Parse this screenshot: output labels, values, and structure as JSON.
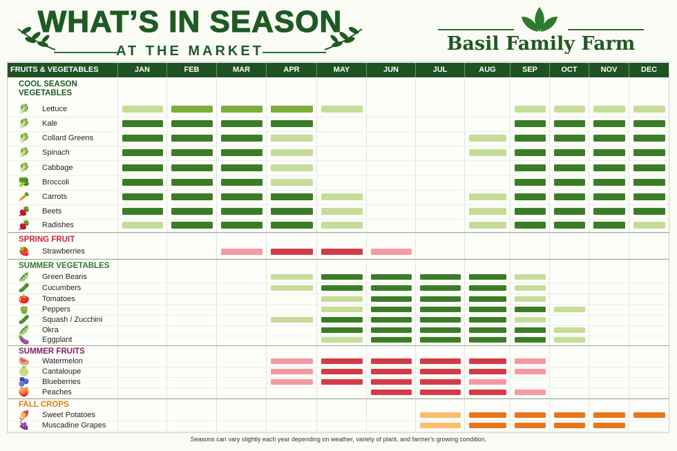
{
  "header": {
    "title": "WHAT’S IN SEASON",
    "subtitle": "AT THE MARKET",
    "brand": "Basil Family Farm"
  },
  "table_header": {
    "first_col": "FRUITS & VEGETABLES",
    "months": [
      "JAN",
      "FEB",
      "MAR",
      "APR",
      "MAY",
      "JUN",
      "JUL",
      "AUG",
      "SEP",
      "OCT",
      "NOV",
      "DEC"
    ]
  },
  "colors": {
    "green_dark": "#3b7d27",
    "green_mid": "#7caf3a",
    "green_light": "#c6dc98",
    "orange_dark": "#e8761a",
    "orange_light": "#fbbd6b",
    "red_dark": "#d23c46",
    "red_light": "#f49aa2",
    "cool": "#1f5a23",
    "spring": "#c8243a",
    "summerveg": "#2e7a2e",
    "summerfruit": "#7d1e6b",
    "fall": "#e07f12"
  },
  "sections": [
    {
      "title": "COOL SEASON VEGETABLES",
      "title_lines": [
        "COOL SEASON",
        "VEGETABLES"
      ],
      "color_key": "cool",
      "items": [
        {
          "name": "Lettuce",
          "icon": "lettuce-icon",
          "glyph": "🥬",
          "season": [
            "L",
            "M",
            "M",
            "M",
            "L",
            0,
            0,
            0,
            "L",
            "L",
            "L",
            "L"
          ]
        },
        {
          "name": "Kale",
          "icon": "kale-icon",
          "glyph": "🥬",
          "season": [
            "D",
            "D",
            "D",
            "D",
            0,
            0,
            0,
            0,
            "D",
            "D",
            "D",
            "D"
          ]
        },
        {
          "name": "Collard Greens",
          "icon": "collard-greens-icon",
          "glyph": "🥬",
          "season": [
            "D",
            "D",
            "D",
            "L",
            0,
            0,
            0,
            "L",
            "D",
            "D",
            "D",
            "D"
          ]
        },
        {
          "name": "Spinach",
          "icon": "spinach-icon",
          "glyph": "🥬",
          "season": [
            "D",
            "D",
            "D",
            "L",
            0,
            0,
            0,
            "L",
            "D",
            "D",
            "D",
            "D"
          ]
        },
        {
          "name": "Cabbage",
          "icon": "cabbage-icon",
          "glyph": "🥬",
          "season": [
            "D",
            "D",
            "D",
            "L",
            0,
            0,
            0,
            0,
            "D",
            "D",
            "D",
            "D"
          ]
        },
        {
          "name": "Broccoli",
          "icon": "broccoli-icon",
          "glyph": "🥦",
          "season": [
            "D",
            "D",
            "D",
            "L",
            0,
            0,
            0,
            0,
            "D",
            "D",
            "D",
            "D"
          ]
        },
        {
          "name": "Carrots",
          "icon": "carrot-icon",
          "glyph": "🥕",
          "season": [
            "D",
            "D",
            "D",
            "D",
            "L",
            0,
            0,
            "L",
            "D",
            "D",
            "D",
            "D"
          ]
        },
        {
          "name": "Beets",
          "icon": "beet-icon",
          "glyph": "🫜",
          "season": [
            "D",
            "D",
            "D",
            "D",
            "L",
            0,
            0,
            "L",
            "D",
            "D",
            "D",
            "D"
          ]
        },
        {
          "name": "Radishes",
          "icon": "radish-icon",
          "glyph": "🫜",
          "season": [
            "L",
            "D",
            "D",
            "D",
            "L",
            0,
            0,
            "L",
            "D",
            "D",
            "D",
            "L"
          ]
        }
      ]
    },
    {
      "title": "SPRING FRUIT",
      "color_key": "spring",
      "items": [
        {
          "name": "Strawberries",
          "icon": "strawberry-icon",
          "glyph": "🍓",
          "season": [
            0,
            0,
            "L",
            "D",
            "D",
            "L",
            0,
            0,
            0,
            0,
            0,
            0
          ]
        }
      ]
    },
    {
      "title": "SUMMER VEGETABLES",
      "color_key": "summerveg",
      "items": [
        {
          "name": "Green Beans",
          "icon": "green-beans-icon",
          "glyph": "🫛",
          "season": [
            0,
            0,
            0,
            "L",
            "D",
            "D",
            "D",
            "D",
            "L",
            0,
            0,
            0
          ]
        },
        {
          "name": "Cucumbers",
          "icon": "cucumber-icon",
          "glyph": "🥒",
          "season": [
            0,
            0,
            0,
            "L",
            "D",
            "D",
            "D",
            "D",
            "L",
            0,
            0,
            0
          ]
        },
        {
          "name": "Tomatoes",
          "icon": "tomato-icon",
          "glyph": "🍅",
          "season": [
            0,
            0,
            0,
            0,
            "L",
            "D",
            "D",
            "D",
            "L",
            0,
            0,
            0
          ]
        },
        {
          "name": "Peppers",
          "icon": "pepper-icon",
          "glyph": "🫑",
          "season": [
            0,
            0,
            0,
            0,
            "L",
            "D",
            "D",
            "D",
            "D",
            "L",
            0,
            0
          ]
        },
        {
          "name": "Squash / Zucchini",
          "icon": "squash-icon",
          "glyph": "🥒",
          "season": [
            0,
            0,
            0,
            "L",
            "D",
            "D",
            "D",
            "D",
            "L",
            0,
            0,
            0
          ]
        },
        {
          "name": "Okra",
          "icon": "okra-icon",
          "glyph": "🫛",
          "season": [
            0,
            0,
            0,
            0,
            "D",
            "D",
            "D",
            "D",
            "D",
            "L",
            0,
            0
          ]
        },
        {
          "name": "Eggplant",
          "icon": "eggplant-icon",
          "glyph": "🍆",
          "season": [
            0,
            0,
            0,
            0,
            "L",
            "D",
            "D",
            "D",
            "D",
            "L",
            0,
            0
          ]
        }
      ]
    },
    {
      "title": "SUMMER FRUITS",
      "color_key": "summerfruit",
      "items": [
        {
          "name": "Watermelon",
          "icon": "watermelon-icon",
          "glyph": "🍉",
          "season": [
            0,
            0,
            0,
            "L",
            "D",
            "D",
            "D",
            "D",
            "L",
            0,
            0,
            0
          ]
        },
        {
          "name": "Cantaloupe",
          "icon": "cantaloupe-icon",
          "glyph": "🍈",
          "season": [
            0,
            0,
            0,
            "L",
            "D",
            "D",
            "D",
            "D",
            "L",
            0,
            0,
            0
          ]
        },
        {
          "name": "Blueberries",
          "icon": "blueberry-icon",
          "glyph": "🫐",
          "season": [
            0,
            0,
            0,
            "L",
            "D",
            "D",
            "D",
            "L",
            0,
            0,
            0,
            0
          ]
        },
        {
          "name": "Peaches",
          "icon": "peach-icon",
          "glyph": "🍑",
          "season": [
            0,
            0,
            0,
            0,
            0,
            "D",
            "D",
            "D",
            "L",
            0,
            0,
            0
          ]
        }
      ]
    },
    {
      "title": "FALL CROPS",
      "color_key": "fall",
      "items": [
        {
          "name": "Sweet Potatoes",
          "icon": "sweet-potato-icon",
          "glyph": "🍠",
          "season": [
            0,
            0,
            0,
            0,
            0,
            0,
            "L",
            "D",
            "D",
            "D",
            "D",
            "D"
          ]
        },
        {
          "name": "Muscadine Grapes",
          "icon": "grape-icon",
          "glyph": "🍇",
          "season": [
            0,
            0,
            0,
            0,
            0,
            0,
            "L",
            "D",
            "D",
            "D",
            "D",
            0
          ]
        }
      ]
    }
  ],
  "footer": "Seasons can vary slightly each year depending on weather, variety of plant, and farmer’s growing condition."
}
